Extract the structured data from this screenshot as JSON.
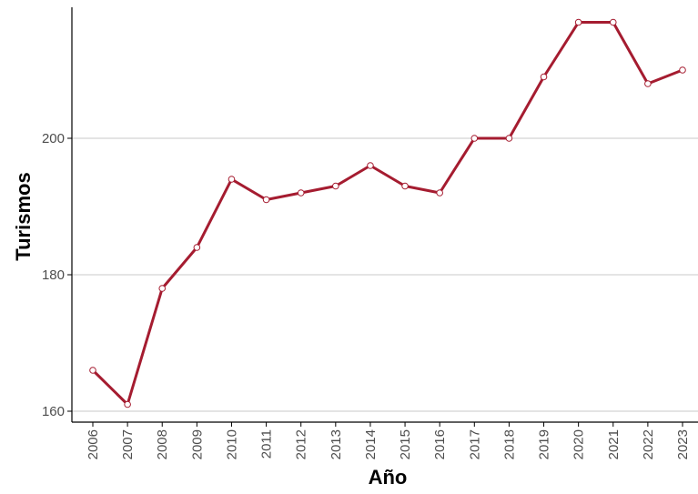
{
  "chart_data": {
    "type": "line",
    "title": "",
    "xlabel": "Año",
    "ylabel": "Turismos",
    "x": [
      "2006",
      "2007",
      "2008",
      "2009",
      "2010",
      "2011",
      "2012",
      "2013",
      "2014",
      "2015",
      "2016",
      "2017",
      "2018",
      "2019",
      "2020",
      "2021",
      "2022",
      "2023"
    ],
    "series": [
      {
        "values": [
          166,
          161,
          178,
          184,
          194,
          191,
          192,
          193,
          196,
          193,
          192,
          200,
          200,
          209,
          217,
          217,
          208,
          210
        ]
      }
    ],
    "ylim": [
      158.4,
      219.2
    ],
    "yticks": [
      160,
      180,
      200
    ],
    "grid": {
      "horizontal_major": true,
      "vertical": false
    },
    "colors": {
      "line": "#a51c30",
      "marker": "#a51c30",
      "grid": "#c8c8c8",
      "axis": "#000000",
      "tick_label": "#4d4d4d"
    }
  }
}
